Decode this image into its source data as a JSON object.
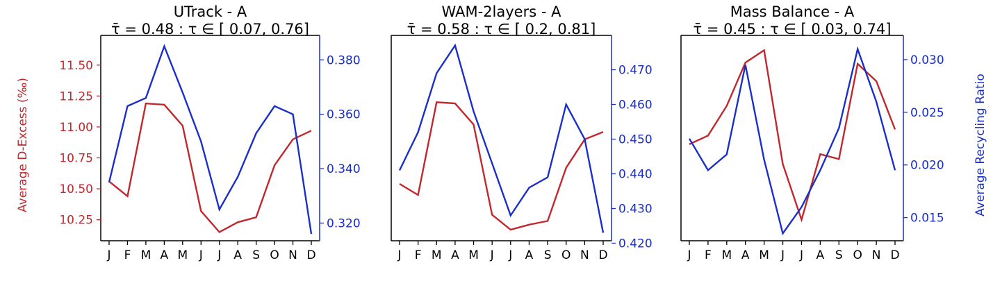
{
  "colors": {
    "left": "#c0282d",
    "right": "#1a2fc8",
    "frame": "#000000"
  },
  "chart_data": [
    {
      "type": "line",
      "title": "UTrack  -  A",
      "subtitle": "τ̄ = 0.48 : τ ∈ [ 0.07, 0.76]",
      "categories": [
        "J",
        "F",
        "M",
        "A",
        "M",
        "J",
        "J",
        "A",
        "S",
        "O",
        "N",
        "D"
      ],
      "ylabel_left": "Average D-Excess (‰)",
      "ylabel_right": "",
      "y_left": {
        "lim": [
          10.08,
          11.74
        ],
        "ticks": [
          "10.25",
          "10.50",
          "10.75",
          "11.00",
          "11.25",
          "11.50"
        ]
      },
      "y_right": {
        "lim": [
          0.3135,
          0.389
        ],
        "ticks": [
          "0.320",
          "0.340",
          "0.360",
          "0.380"
        ]
      },
      "series": [
        {
          "axis": "left",
          "values": [
            10.56,
            10.44,
            11.19,
            11.18,
            11.01,
            10.32,
            10.15,
            10.23,
            10.27,
            10.69,
            10.9,
            10.97
          ]
        },
        {
          "axis": "right",
          "values": [
            0.335,
            0.363,
            0.366,
            0.385,
            0.368,
            0.35,
            0.325,
            0.337,
            0.353,
            0.363,
            0.36,
            0.316
          ]
        }
      ]
    },
    {
      "type": "line",
      "title": "WAM-2layers  -  A",
      "subtitle": "τ̄ = 0.58 : τ ∈ [ 0.2, 0.81]",
      "categories": [
        "J",
        "F",
        "M",
        "A",
        "M",
        "J",
        "J",
        "A",
        "S",
        "O",
        "N",
        "D"
      ],
      "ylabel_left": "",
      "ylabel_right": "",
      "y_left": {
        "lim": [
          10.08,
          11.74
        ],
        "ticks": []
      },
      "y_right": {
        "lim": [
          0.4207,
          0.4799
        ],
        "ticks": [
          "0.420",
          "0.430",
          "0.440",
          "0.450",
          "0.460",
          "0.470"
        ]
      },
      "series": [
        {
          "axis": "left",
          "values": [
            10.54,
            10.45,
            11.2,
            11.19,
            11.02,
            10.29,
            10.17,
            10.21,
            10.24,
            10.67,
            10.9,
            10.96
          ]
        },
        {
          "axis": "right",
          "values": [
            0.441,
            0.452,
            0.469,
            0.477,
            0.458,
            0.443,
            0.428,
            0.436,
            0.439,
            0.46,
            0.45,
            0.423
          ]
        }
      ]
    },
    {
      "type": "line",
      "title": "Mass Balance  -  A",
      "subtitle": "τ̄ = 0.45 : τ ∈ [ 0.03, 0.74]",
      "categories": [
        "J",
        "F",
        "M",
        "A",
        "M",
        "J",
        "J",
        "A",
        "S",
        "O",
        "N",
        "D"
      ],
      "ylabel_left": "",
      "ylabel_right": "Average Recycling Ratio",
      "y_left": {
        "lim": [
          10.08,
          11.74
        ],
        "ticks": []
      },
      "y_right": {
        "lim": [
          0.0128,
          0.0323
        ],
        "ticks": [
          "0.015",
          "0.020",
          "0.025",
          "0.030"
        ]
      },
      "series": [
        {
          "axis": "left",
          "values": [
            10.86,
            10.93,
            11.17,
            11.52,
            11.62,
            10.7,
            10.25,
            10.78,
            10.74,
            11.51,
            11.37,
            10.98
          ]
        },
        {
          "axis": "right",
          "values": [
            0.0225,
            0.0195,
            0.021,
            0.0295,
            0.0205,
            0.0135,
            0.016,
            0.0195,
            0.0235,
            0.031,
            0.026,
            0.0195
          ]
        }
      ]
    }
  ]
}
